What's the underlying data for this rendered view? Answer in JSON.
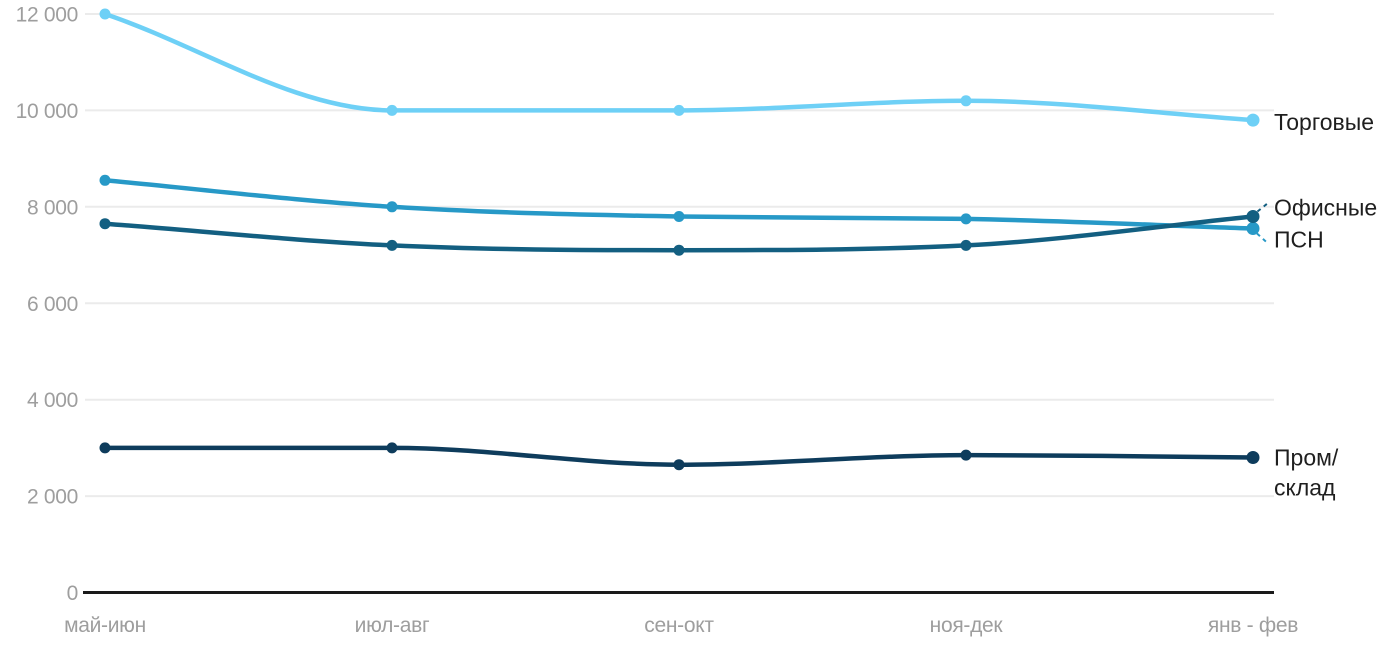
{
  "chart_data": {
    "type": "line",
    "x_categories": [
      "май-июн",
      "июл-авг",
      "сен-окт",
      "ноя-дек",
      "янв - фев"
    ],
    "y_tick_values": [
      0,
      2000,
      4000,
      6000,
      8000,
      10000,
      12000
    ],
    "y_tick_labels": [
      "0",
      "2 000",
      "4 000",
      "6 000",
      "8 000",
      "10 000",
      "12 000"
    ],
    "ylim": [
      0,
      12000
    ],
    "grid": "horizontal",
    "legend_position": "right-edge-labels",
    "series": [
      {
        "key": "torgovye",
        "name": "Торговые",
        "label_lines": [
          "Торговые"
        ],
        "color": "#6ed0f6",
        "values": [
          12000,
          10000,
          10000,
          10200,
          9800
        ]
      },
      {
        "key": "ofisnye",
        "name": "Офисные",
        "label_lines": [
          "Офисные"
        ],
        "color": "#135f81",
        "values": [
          7650,
          7200,
          7100,
          7200,
          7800
        ]
      },
      {
        "key": "psn",
        "name": "ПСН",
        "label_lines": [
          "ПСН"
        ],
        "color": "#2799c7",
        "values": [
          8550,
          8000,
          7800,
          7750,
          7550
        ]
      },
      {
        "key": "prom-sklad",
        "name": "Пром/склад",
        "label_lines": [
          "Пром/",
          "склад"
        ],
        "color": "#0e3c5c",
        "values": [
          3000,
          3000,
          2650,
          2850,
          2800
        ]
      }
    ],
    "colors": {
      "grid": "#ebebeb",
      "axis": "#1a1a1a",
      "tick_label": "#9e9e9e",
      "series_label": "#1f1f1f"
    }
  }
}
